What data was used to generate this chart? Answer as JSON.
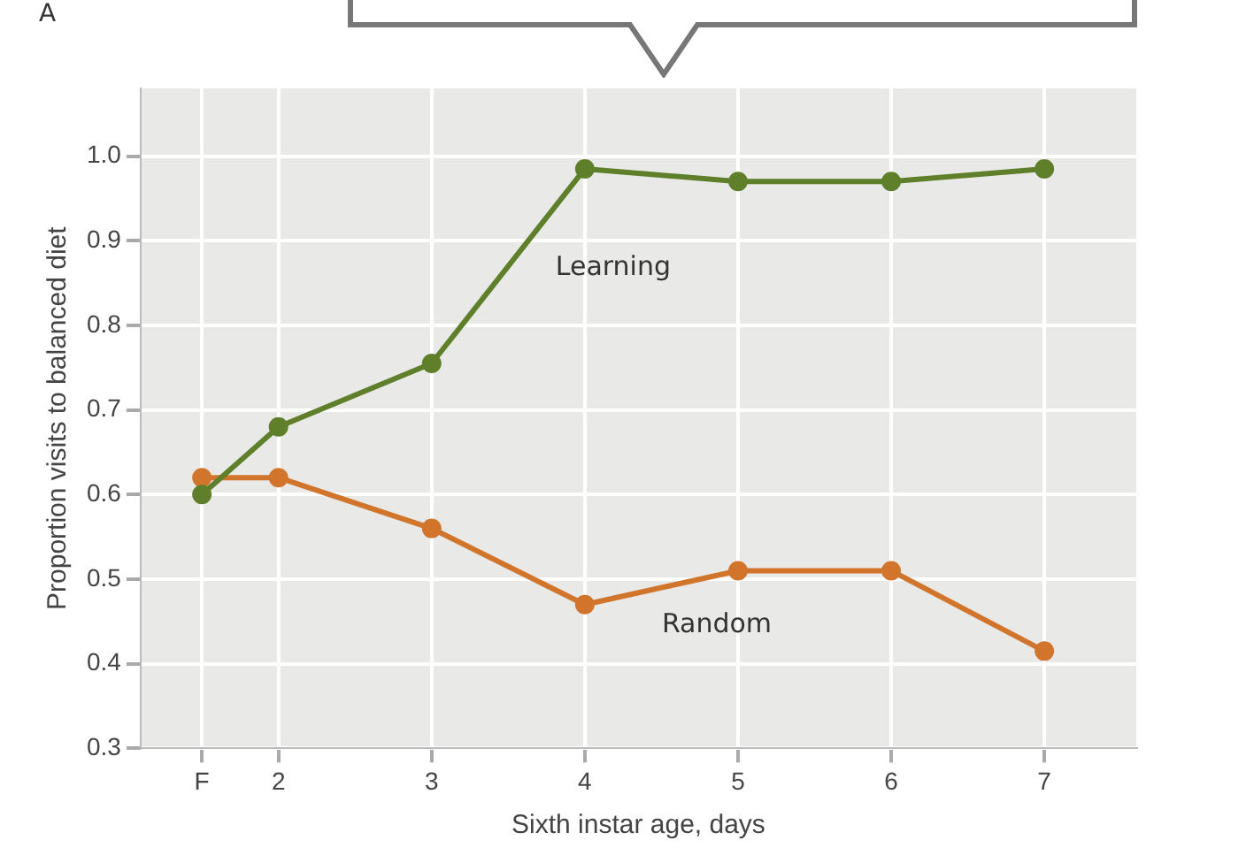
{
  "chart_data": {
    "type": "line",
    "xlabel": "Sixth instar age, days",
    "ylabel": "Proportion visits to balanced diet",
    "annotations": [
      "A"
    ],
    "x": [
      1.5,
      2,
      3,
      4,
      5,
      6,
      7
    ],
    "series": [
      {
        "name": "Learning",
        "color": "#5f7f2a",
        "values": [
          0.6,
          0.68,
          0.755,
          0.985,
          0.97,
          0.97,
          0.985
        ]
      },
      {
        "name": "Random",
        "color": "#d2752c",
        "values": [
          0.62,
          0.62,
          0.56,
          0.47,
          0.51,
          0.51,
          0.415
        ]
      }
    ],
    "xlim": [
      1.1,
      7.6
    ],
    "xticks": [
      {
        "value": 1.5,
        "label": "F"
      },
      2,
      3,
      4,
      5,
      6,
      7
    ],
    "ylim": [
      0.3,
      1.08
    ],
    "yticks": [
      {
        "value": 0.3,
        "label": "0.3"
      },
      {
        "value": 0.4,
        "label": "0.4"
      },
      {
        "value": 0.5,
        "label": "0.5"
      },
      {
        "value": 0.6,
        "label": "0.6"
      },
      {
        "value": 0.7,
        "label": "0.7"
      },
      {
        "value": 0.8,
        "label": "0.8"
      },
      {
        "value": 0.9,
        "label": "0.9"
      },
      {
        "value": 1.0,
        "label": "1.0"
      }
    ],
    "grid": true,
    "legend": false,
    "marker": "circle",
    "line_style": "solid"
  }
}
